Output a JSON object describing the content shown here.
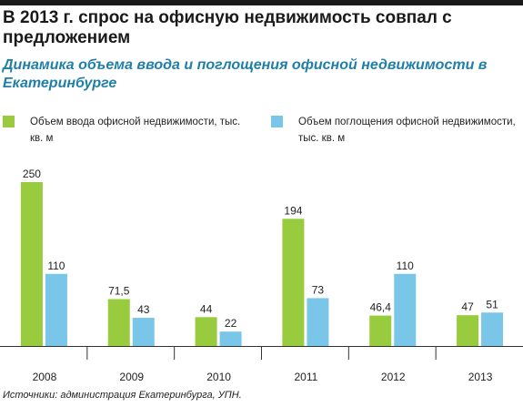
{
  "header": {
    "title": "В 2013 г. спрос на офисную недвижимость совпал с предложением",
    "subtitle": "Динамика объема ввода и поглощения офисной недвижимости в Екатеринбурге"
  },
  "colors": {
    "input": "#98cb3d",
    "absorption": "#79c6e8",
    "accent": "#1f7fa6"
  },
  "chart_data": {
    "type": "bar",
    "categories": [
      "2008",
      "2009",
      "2010",
      "2011",
      "2012",
      "2013"
    ],
    "series": [
      {
        "name": "Объем ввода офисной недвижимости, тыс. кв. м",
        "values": [
          250,
          71.5,
          44,
          194,
          46.4,
          47
        ],
        "labels": [
          "250",
          "71,5",
          "44",
          "194",
          "46,4",
          "47"
        ]
      },
      {
        "name": "Объем поглощения офисной недвижимости, тыс. кв. м",
        "values": [
          110,
          43,
          22,
          73,
          110,
          51
        ],
        "labels": [
          "110",
          "43",
          "22",
          "73",
          "110",
          "51"
        ]
      }
    ],
    "ylim": [
      0,
      250
    ],
    "grid": false,
    "legend_position": "top"
  },
  "footer": {
    "source": "Источники: администрация Екатеринбурга, УПН."
  }
}
